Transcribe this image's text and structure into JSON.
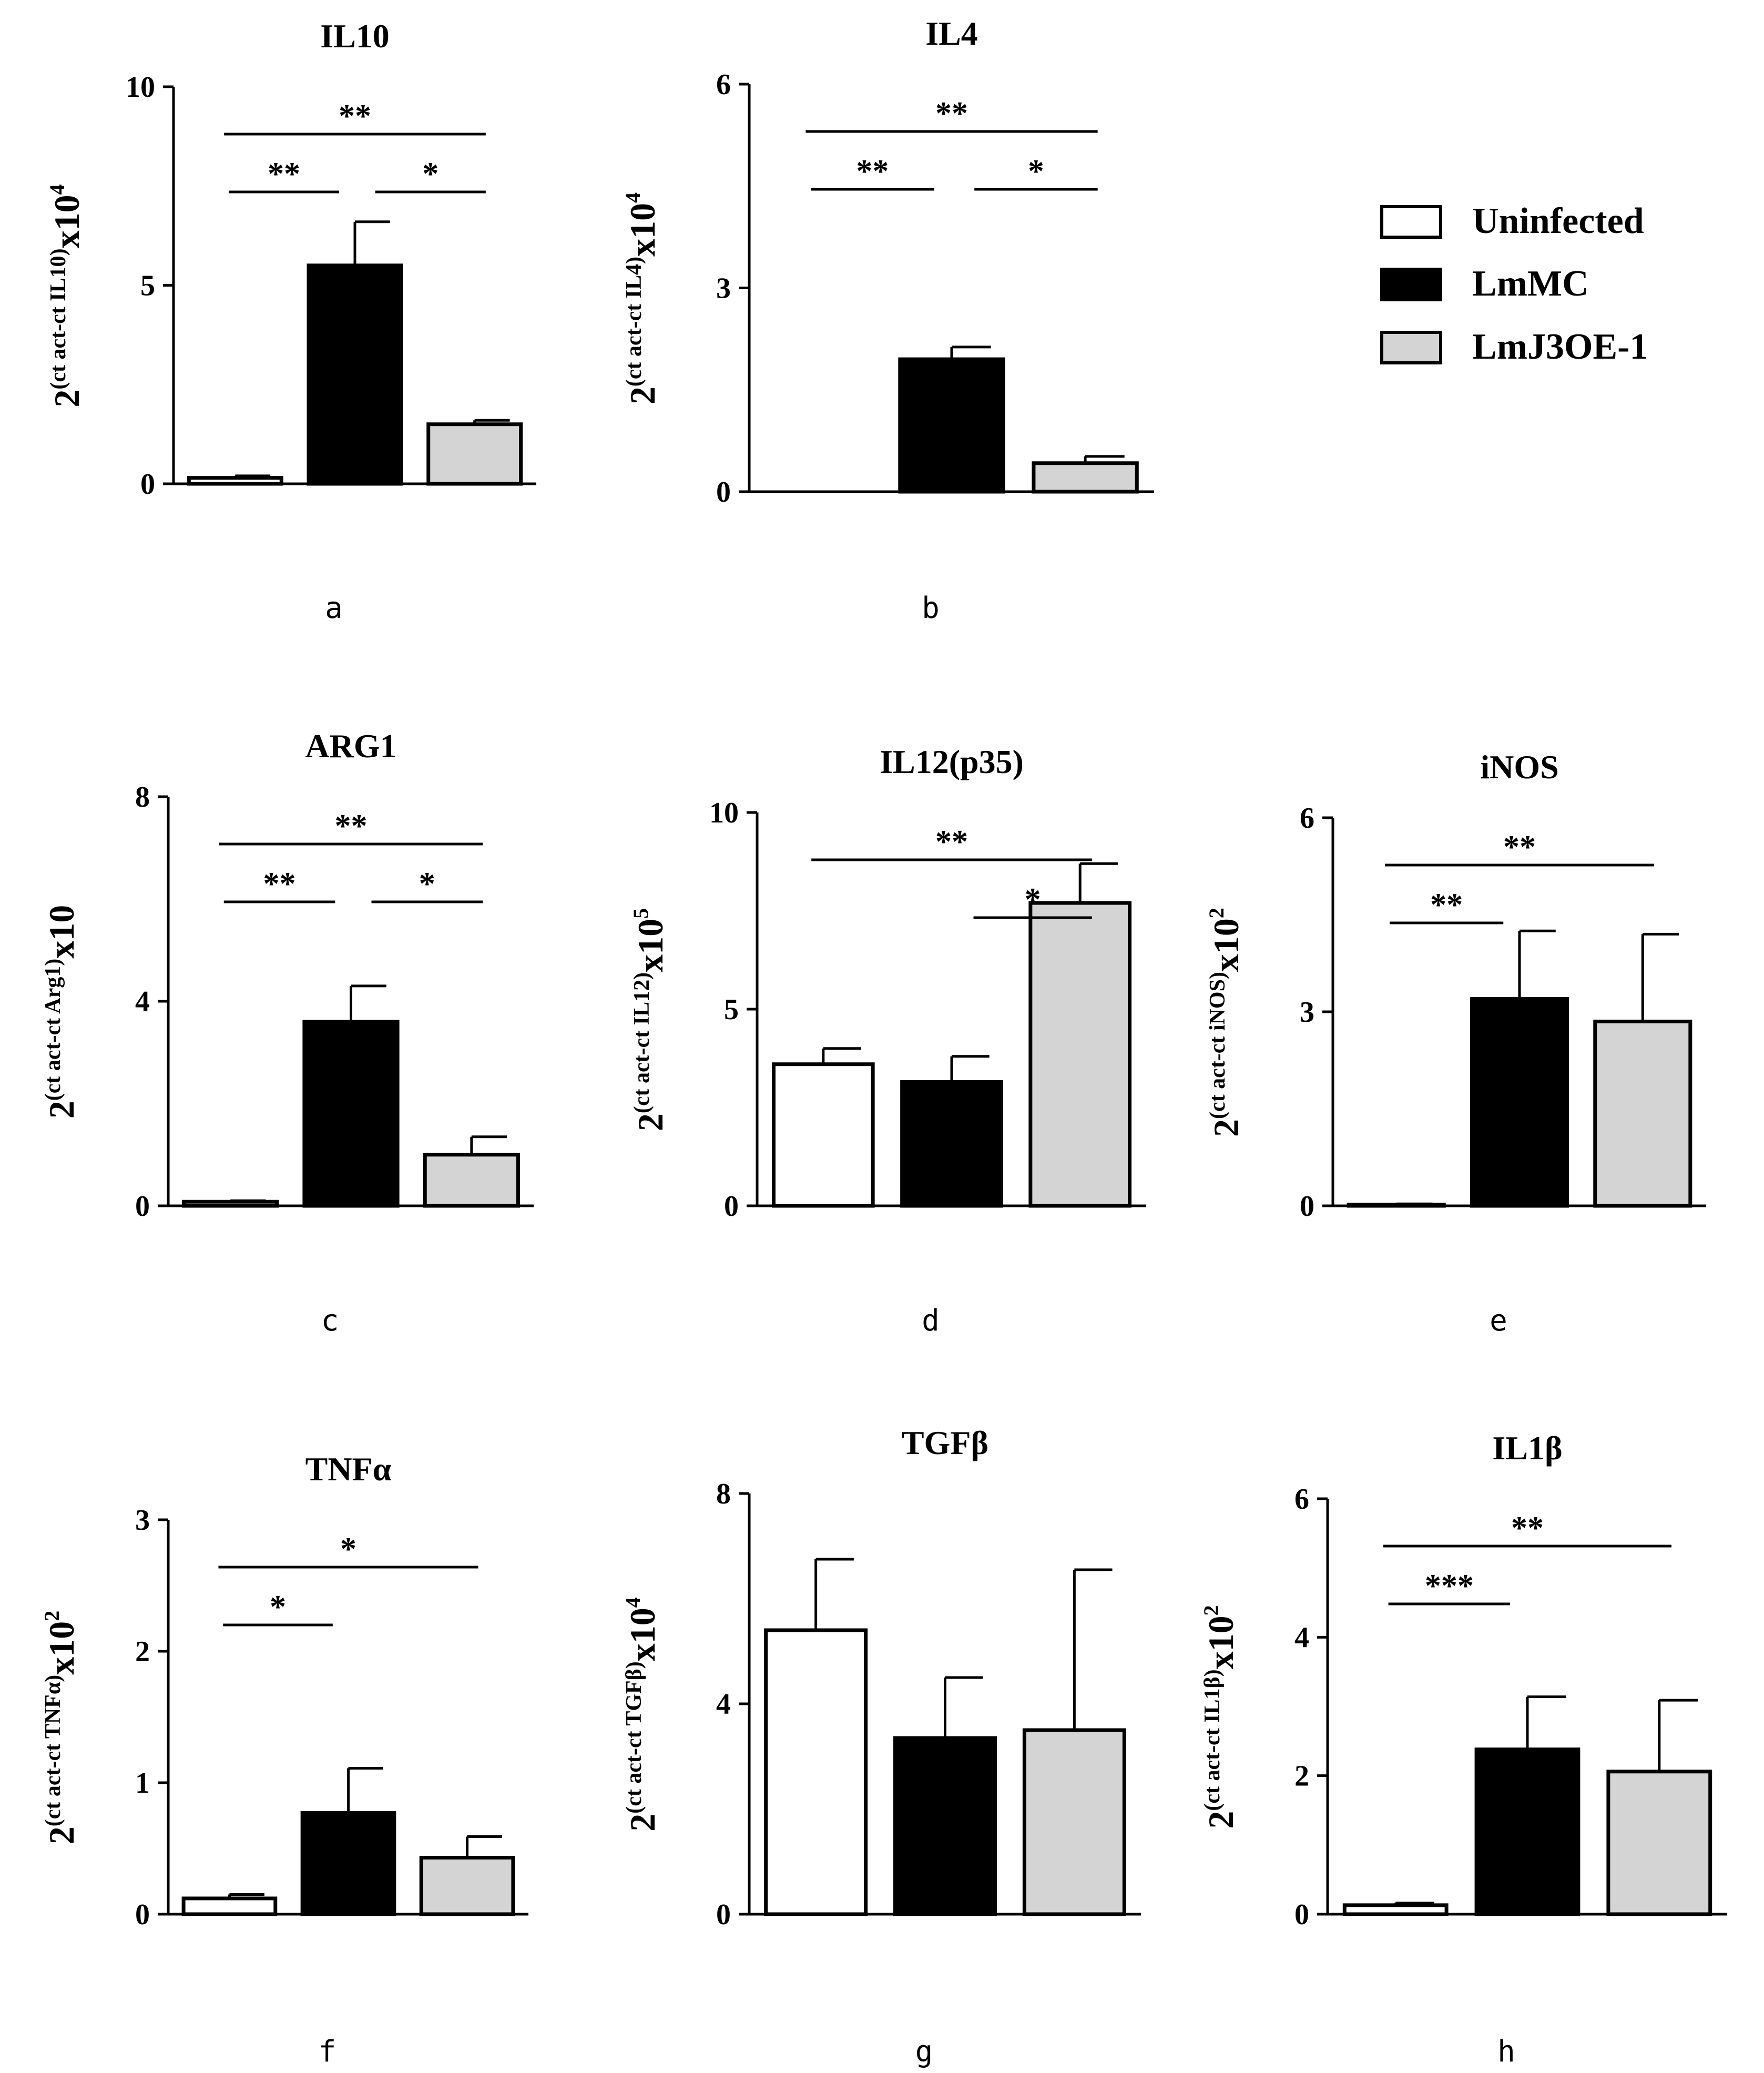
{
  "colors": {
    "uninfected": "#ffffff",
    "lmmc": "#000000",
    "lmj3oe": "#d4d4d4",
    "stroke": "#000000"
  },
  "legend": {
    "items": [
      {
        "label": "Uninfected",
        "color": "#ffffff"
      },
      {
        "label": "LmMC",
        "color": "#000000"
      },
      {
        "label": "LmJ3OE-1",
        "color": "#d4d4d4"
      }
    ]
  },
  "chart_data": [
    {
      "type": "bar",
      "panel": "a",
      "title": "IL10",
      "ylabel_base": "2",
      "ylabel_sup": "(ct act-ct IL10)",
      "ylabel_mult": "x10",
      "ylabel_exp": "4",
      "categories": [
        "Uninfected",
        "LmMC",
        "LmJ3OE-1"
      ],
      "values": [
        0.15,
        5.5,
        1.5
      ],
      "errors": [
        0.05,
        1.1,
        0.1
      ],
      "ylim": [
        0,
        10
      ],
      "yticks": [
        "0",
        "5",
        "10"
      ],
      "significance": [
        {
          "from": 0,
          "to": 2,
          "label": "**",
          "level": 0
        },
        {
          "from": 0,
          "to": 1,
          "label": "**",
          "level": 1
        },
        {
          "from": 1,
          "to": 2,
          "label": "*",
          "level": 1
        }
      ]
    },
    {
      "type": "bar",
      "panel": "b",
      "title": "IL4",
      "ylabel_base": "2",
      "ylabel_sup": "(ct act-ct  IL4)",
      "ylabel_mult": "x10",
      "ylabel_exp": "4",
      "categories": [
        "Uninfected",
        "LmMC",
        "LmJ3OE-1"
      ],
      "values": [
        0,
        1.95,
        0.42
      ],
      "errors": [
        0,
        0.18,
        0.1
      ],
      "ylim": [
        0,
        6
      ],
      "yticks": [
        "0",
        "3",
        "6"
      ],
      "significance": [
        {
          "from": 0,
          "to": 2,
          "label": "**",
          "level": 0
        },
        {
          "from": 0,
          "to": 1,
          "label": "**",
          "level": 1
        },
        {
          "from": 1,
          "to": 2,
          "label": "*",
          "level": 1
        }
      ]
    },
    {
      "type": "bar",
      "panel": "c",
      "title": "ARG1",
      "ylabel_base": "2",
      "ylabel_sup": "(ct act-ct  Arg1)",
      "ylabel_mult": "x10",
      "ylabel_exp": "",
      "categories": [
        "Uninfected",
        "LmMC",
        "LmJ3OE-1"
      ],
      "values": [
        0.08,
        3.6,
        1.0
      ],
      "errors": [
        0.02,
        0.7,
        0.35
      ],
      "ylim": [
        0,
        8
      ],
      "yticks": [
        "0",
        "4",
        "8"
      ],
      "significance": [
        {
          "from": 0,
          "to": 2,
          "label": "**",
          "level": 0
        },
        {
          "from": 0,
          "to": 1,
          "label": "**",
          "level": 1
        },
        {
          "from": 1,
          "to": 2,
          "label": "*",
          "level": 1
        }
      ]
    },
    {
      "type": "bar",
      "panel": "d",
      "title": "IL12(p35)",
      "ylabel_base": "2",
      "ylabel_sup": "(ct act-ct IL12)",
      "ylabel_mult": "x10",
      "ylabel_exp": "5",
      "categories": [
        "Uninfected",
        "LmMC",
        "LmJ3OE-1"
      ],
      "values": [
        3.6,
        3.15,
        7.7
      ],
      "errors": [
        0.4,
        0.65,
        1.0
      ],
      "ylim": [
        0,
        10
      ],
      "yticks": [
        "0",
        "5",
        "10"
      ],
      "significance": [
        {
          "from": 0,
          "to": 2,
          "label": "**",
          "level": 0
        },
        {
          "from": 1,
          "to": 2,
          "label": "*",
          "level": 1
        }
      ]
    },
    {
      "type": "bar",
      "panel": "e",
      "title": "iNOS",
      "ylabel_base": "2",
      "ylabel_sup": "(ct act-ct  iNOS)",
      "ylabel_mult": "x10",
      "ylabel_exp": "2",
      "categories": [
        "Uninfected",
        "LmMC",
        "LmJ3OE-1"
      ],
      "values": [
        0.02,
        3.2,
        2.85
      ],
      "errors": [
        0.01,
        1.05,
        1.35
      ],
      "ylim": [
        0,
        6
      ],
      "yticks": [
        "0",
        "3",
        "6"
      ],
      "significance": [
        {
          "from": 0,
          "to": 2,
          "label": "**",
          "level": 0
        },
        {
          "from": 0,
          "to": 1,
          "label": "**",
          "level": 1
        }
      ]
    },
    {
      "type": "bar",
      "panel": "f",
      "title": "TNFα",
      "ylabel_base": "2",
      "ylabel_sup": "(ct act-ct  TNFα)",
      "ylabel_mult": "x10",
      "ylabel_exp": "2",
      "categories": [
        "Uninfected",
        "LmMC",
        "LmJ3OE-1"
      ],
      "values": [
        0.12,
        0.77,
        0.43
      ],
      "errors": [
        0.03,
        0.34,
        0.16
      ],
      "ylim": [
        0,
        3
      ],
      "yticks": [
        "0",
        "1",
        "2",
        "3"
      ],
      "significance": [
        {
          "from": 0,
          "to": 2,
          "label": "*",
          "level": 0
        },
        {
          "from": 0,
          "to": 1,
          "label": "*",
          "level": 1
        }
      ]
    },
    {
      "type": "bar",
      "panel": "g",
      "title": "TGFβ",
      "ylabel_base": "2",
      "ylabel_sup": "(ct act-ct TGFβ)",
      "ylabel_mult": "x10",
      "ylabel_exp": "4",
      "categories": [
        "Uninfected",
        "LmMC",
        "LmJ3OE-1"
      ],
      "values": [
        5.4,
        3.35,
        3.5
      ],
      "errors": [
        1.35,
        1.15,
        3.05
      ],
      "ylim": [
        0,
        8
      ],
      "yticks": [
        "0",
        "4",
        "8"
      ],
      "significance": []
    },
    {
      "type": "bar",
      "panel": "h",
      "title": "IL1β",
      "ylabel_base": "2",
      "ylabel_sup": "(ct act-ct  IL1β)",
      "ylabel_mult": "x10",
      "ylabel_exp": "2",
      "categories": [
        "Uninfected",
        "LmMC",
        "LmJ3OE-1"
      ],
      "values": [
        0.13,
        2.38,
        2.06
      ],
      "errors": [
        0.03,
        0.76,
        1.03
      ],
      "ylim": [
        0,
        6
      ],
      "yticks": [
        "0",
        "2",
        "4",
        "6"
      ],
      "significance": [
        {
          "from": 0,
          "to": 2,
          "label": "**",
          "level": 0
        },
        {
          "from": 0,
          "to": 1,
          "label": "***",
          "level": 1
        }
      ]
    }
  ]
}
